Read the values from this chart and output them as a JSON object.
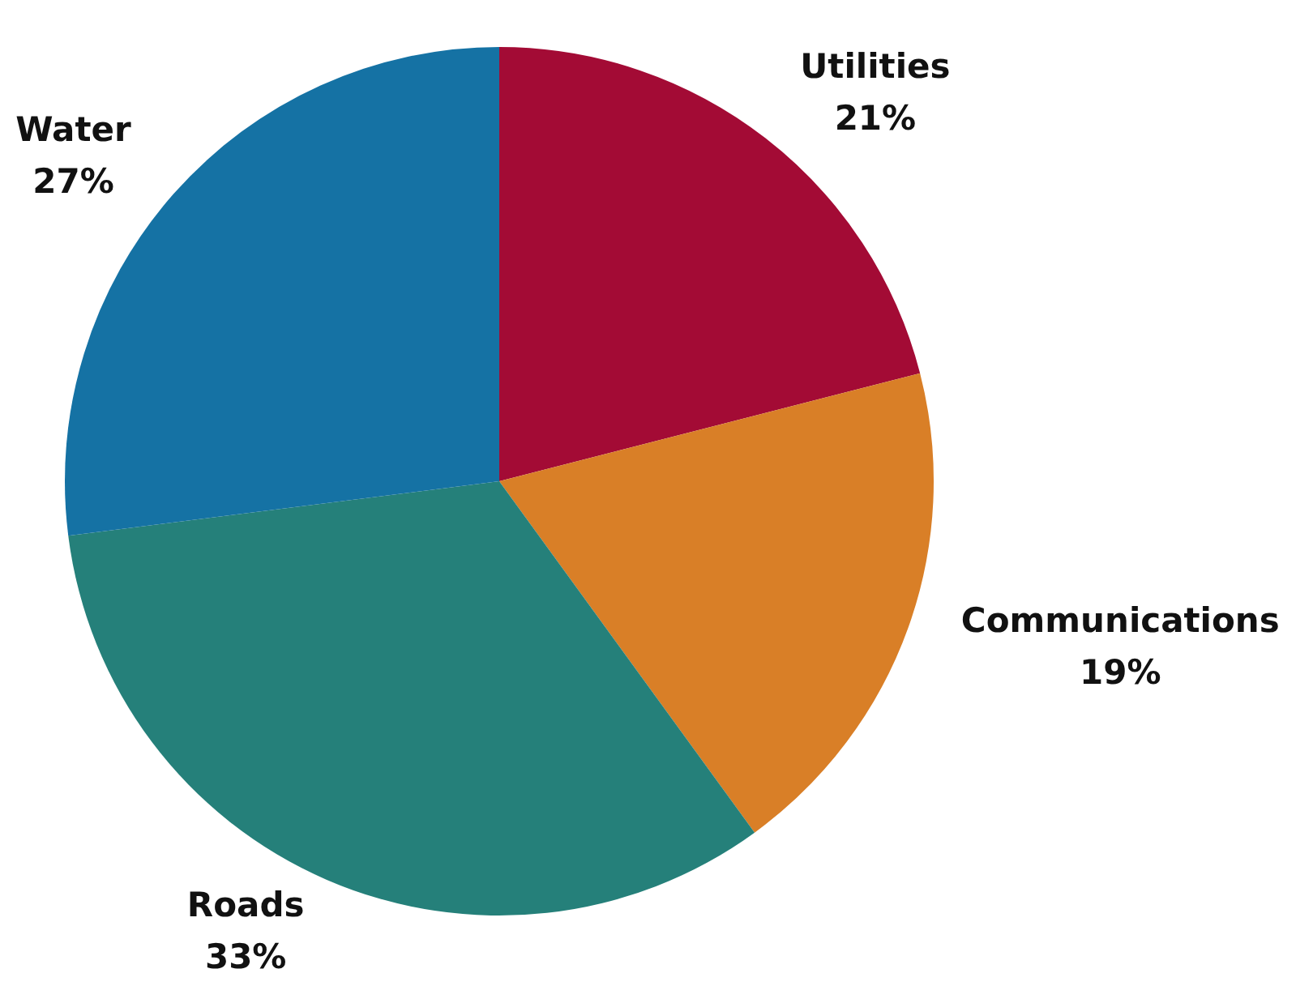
{
  "chart_data": {
    "type": "pie",
    "categories": [
      "Utilities",
      "Communications",
      "Roads",
      "Water"
    ],
    "values": [
      21,
      19,
      33,
      27
    ],
    "colors": [
      "#a30b35",
      "#d97f27",
      "#25807a",
      "#1572a4"
    ],
    "value_labels": [
      "21%",
      "19%",
      "33%",
      "27%"
    ],
    "legend": false
  }
}
